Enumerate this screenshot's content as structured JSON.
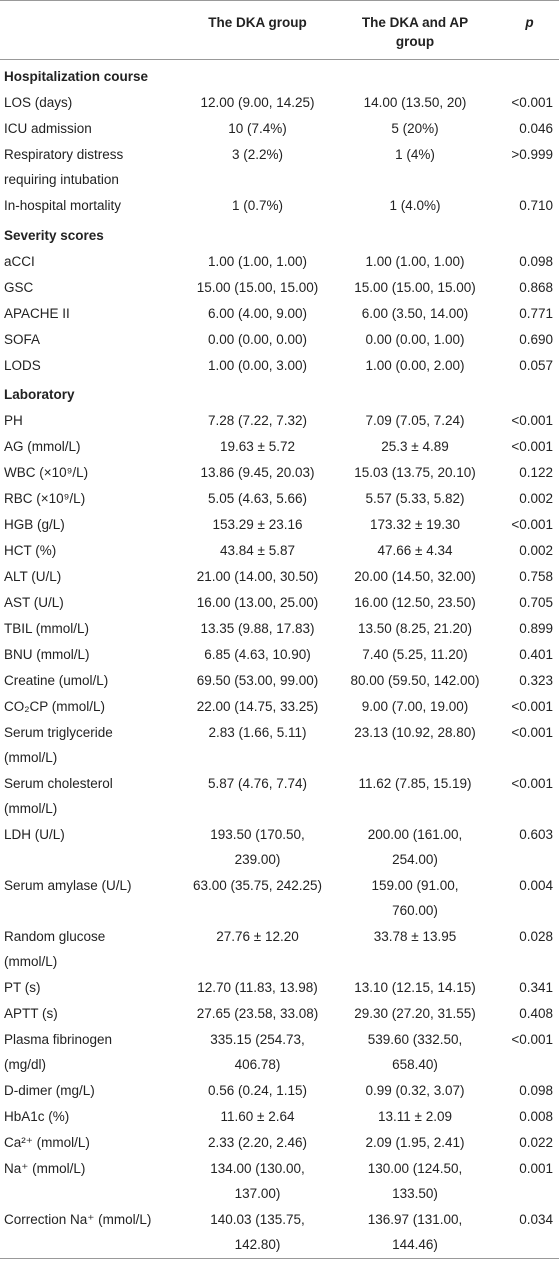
{
  "header": {
    "columns": [
      "The DKA group",
      "The DKA and AP group",
      "p"
    ]
  },
  "sections": [
    {
      "title": "Hospitalization course",
      "rows": [
        [
          "LOS (days)",
          "12.00 (9.00, 14.25)",
          "14.00 (13.50, 20)",
          "<0.001"
        ],
        [
          "ICU admission",
          "10 (7.4%)",
          "5 (20%)",
          "0.046"
        ],
        [
          "Respiratory distress requiring intubation",
          "3 (2.2%)",
          "1 (4%)",
          ">0.999"
        ],
        [
          "In-hospital mortality",
          "1 (0.7%)",
          "1 (4.0%)",
          "0.710"
        ]
      ]
    },
    {
      "title": "Severity scores",
      "rows": [
        [
          "aCCI",
          "1.00 (1.00, 1.00)",
          "1.00 (1.00, 1.00)",
          "0.098"
        ],
        [
          "GSC",
          "15.00 (15.00, 15.00)",
          "15.00 (15.00, 15.00)",
          "0.868"
        ],
        [
          "APACHE II",
          "6.00 (4.00, 9.00)",
          "6.00 (3.50, 14.00)",
          "0.771"
        ],
        [
          "SOFA",
          "0.00 (0.00, 0.00)",
          "0.00 (0.00, 1.00)",
          "0.690"
        ],
        [
          "LODS",
          "1.00 (0.00, 3.00)",
          "1.00 (0.00, 2.00)",
          "0.057"
        ]
      ]
    },
    {
      "title": "Laboratory",
      "rows": [
        [
          "PH",
          "7.28 (7.22, 7.32)",
          "7.09 (7.05, 7.24)",
          "<0.001"
        ],
        [
          "AG (mmol/L)",
          "19.63 ± 5.72",
          "25.3 ± 4.89",
          "<0.001"
        ],
        [
          "WBC (×10⁹/L)",
          "13.86 (9.45, 20.03)",
          "15.03 (13.75, 20.10)",
          "0.122"
        ],
        [
          "RBC (×10⁹/L)",
          "5.05 (4.63, 5.66)",
          "5.57 (5.33, 5.82)",
          "0.002"
        ],
        [
          "HGB (g/L)",
          "153.29 ± 23.16",
          "173.32 ± 19.30",
          "<0.001"
        ],
        [
          "HCT (%)",
          "43.84 ± 5.87",
          "47.66 ± 4.34",
          "0.002"
        ],
        [
          "ALT (U/L)",
          "21.00 (14.00, 30.50)",
          "20.00 (14.50, 32.00)",
          "0.758"
        ],
        [
          "AST (U/L)",
          "16.00 (13.00, 25.00)",
          "16.00 (12.50, 23.50)",
          "0.705"
        ],
        [
          "TBIL (mmol/L)",
          "13.35 (9.88, 17.83)",
          "13.50 (8.25, 21.20)",
          "0.899"
        ],
        [
          "BNU (mmol/L)",
          "6.85 (4.63, 10.90)",
          "7.40 (5.25, 11.20)",
          "0.401"
        ],
        [
          "Creatine (umol/L)",
          "69.50 (53.00, 99.00)",
          "80.00 (59.50, 142.00)",
          "0.323"
        ],
        [
          "CO₂CP (mmol/L)",
          "22.00 (14.75, 33.25)",
          "9.00 (7.00, 19.00)",
          "<0.001"
        ],
        [
          "Serum triglyceride (mmol/L)",
          "2.83 (1.66, 5.11)",
          "23.13 (10.92, 28.80)",
          "<0.001"
        ],
        [
          "Serum cholesterol (mmol/L)",
          "5.87 (4.76, 7.74)",
          "11.62 (7.85, 15.19)",
          "<0.001"
        ],
        [
          "LDH (U/L)",
          "193.50 (170.50, 239.00)",
          "200.00 (161.00, 254.00)",
          "0.603"
        ],
        [
          "Serum amylase (U/L)",
          "63.00 (35.75, 242.25)",
          "159.00 (91.00, 760.00)",
          "0.004"
        ],
        [
          "Random glucose (mmol/L)",
          "27.76 ± 12.20",
          "33.78 ± 13.95",
          "0.028"
        ],
        [
          "PT (s)",
          "12.70 (11.83, 13.98)",
          "13.10 (12.15, 14.15)",
          "0.341"
        ],
        [
          "APTT (s)",
          "27.65 (23.58, 33.08)",
          "29.30 (27.20, 31.55)",
          "0.408"
        ],
        [
          "Plasma fibrinogen (mg/dl)",
          "335.15 (254.73, 406.78)",
          "539.60 (332.50, 658.40)",
          "<0.001"
        ],
        [
          "D-dimer (mg/L)",
          "0.56 (0.24, 1.15)",
          "0.99 (0.32, 3.07)",
          "0.098"
        ],
        [
          "HbA1c (%)",
          "11.60 ± 2.64",
          "13.11 ± 2.09",
          "0.008"
        ],
        [
          "Ca²⁺ (mmol/L)",
          "2.33 (2.20, 2.46)",
          "2.09 (1.95, 2.41)",
          "0.022"
        ],
        [
          "Na⁺ (mmol/L)",
          "134.00 (130.00, 137.00)",
          "130.00 (124.50, 133.50)",
          "0.001"
        ],
        [
          "Correction Na⁺ (mmol/L)",
          "140.03 (135.75, 142.80)",
          "136.97 (131.00, 144.46)",
          "0.034"
        ]
      ]
    }
  ]
}
